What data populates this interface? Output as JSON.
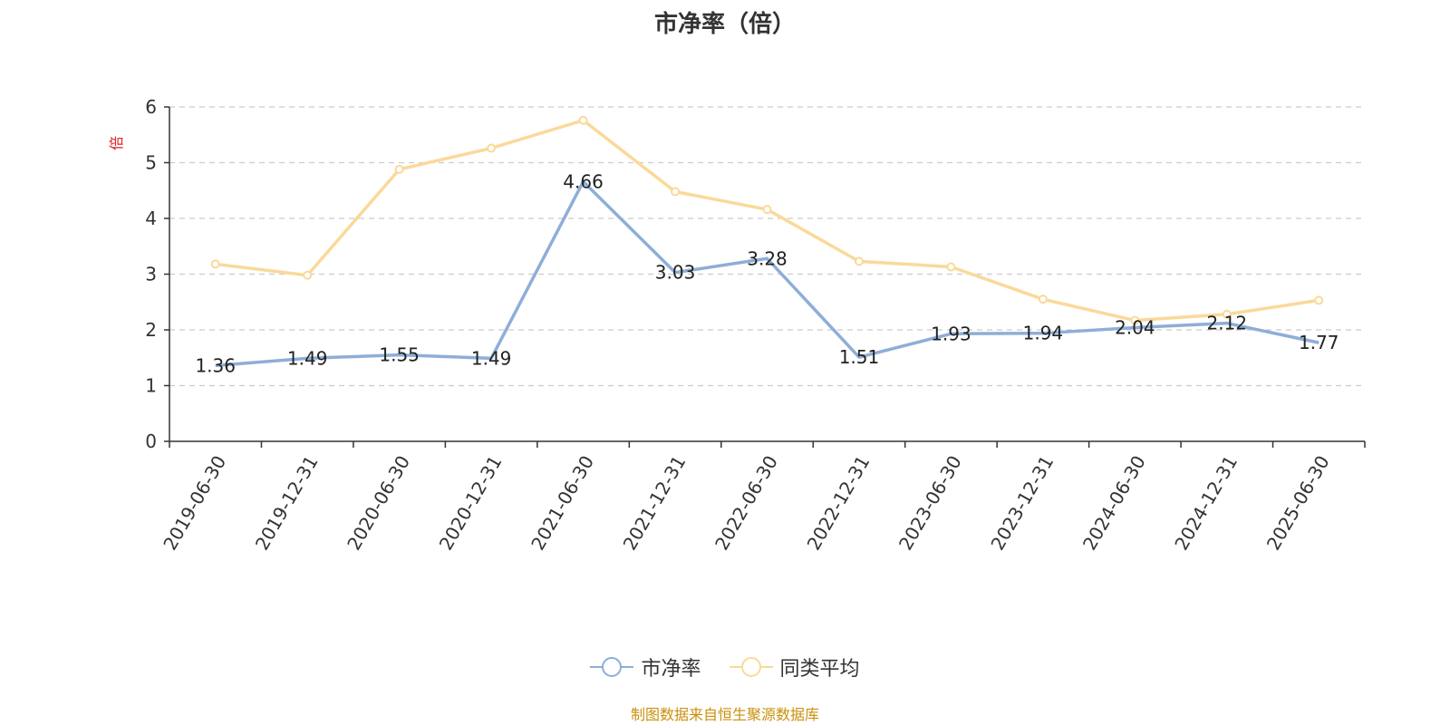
{
  "chart_data": {
    "type": "line",
    "title": "市净率（倍）",
    "ylabel": "倍",
    "ylim": [
      0,
      6
    ],
    "yticks": [
      0,
      1,
      2,
      3,
      4,
      5,
      6
    ],
    "grid": true,
    "legend_position": "bottom-center",
    "categories": [
      "2019-06-30",
      "2019-12-31",
      "2020-06-30",
      "2020-12-31",
      "2021-06-30",
      "2021-12-31",
      "2022-06-30",
      "2022-12-31",
      "2023-06-30",
      "2023-12-31",
      "2024-06-30",
      "2024-12-31",
      "2025-06-30"
    ],
    "series": [
      {
        "name": "市净率",
        "color": "#8eaed8",
        "values": [
          1.36,
          1.49,
          1.55,
          1.49,
          4.66,
          3.03,
          3.28,
          1.51,
          1.93,
          1.94,
          2.04,
          2.12,
          1.77
        ],
        "labels": [
          "1.36",
          "1.49",
          "1.55",
          "1.49",
          "4.66",
          "3.03",
          "3.28",
          "1.51",
          "1.93",
          "1.94",
          "2.04",
          "2.12",
          "1.77"
        ]
      },
      {
        "name": "同类平均",
        "color": "#fad999",
        "values": [
          3.18,
          2.98,
          4.88,
          5.26,
          5.76,
          4.48,
          4.16,
          3.23,
          3.13,
          2.55,
          2.17,
          2.28,
          2.53
        ]
      }
    ]
  },
  "footer": {
    "source": "制图数据来自恒生聚源数据库"
  },
  "colors": {
    "ylabel": "#e02020",
    "footer": "#c9900c",
    "grid": "#cccccc",
    "axis": "#333333"
  }
}
